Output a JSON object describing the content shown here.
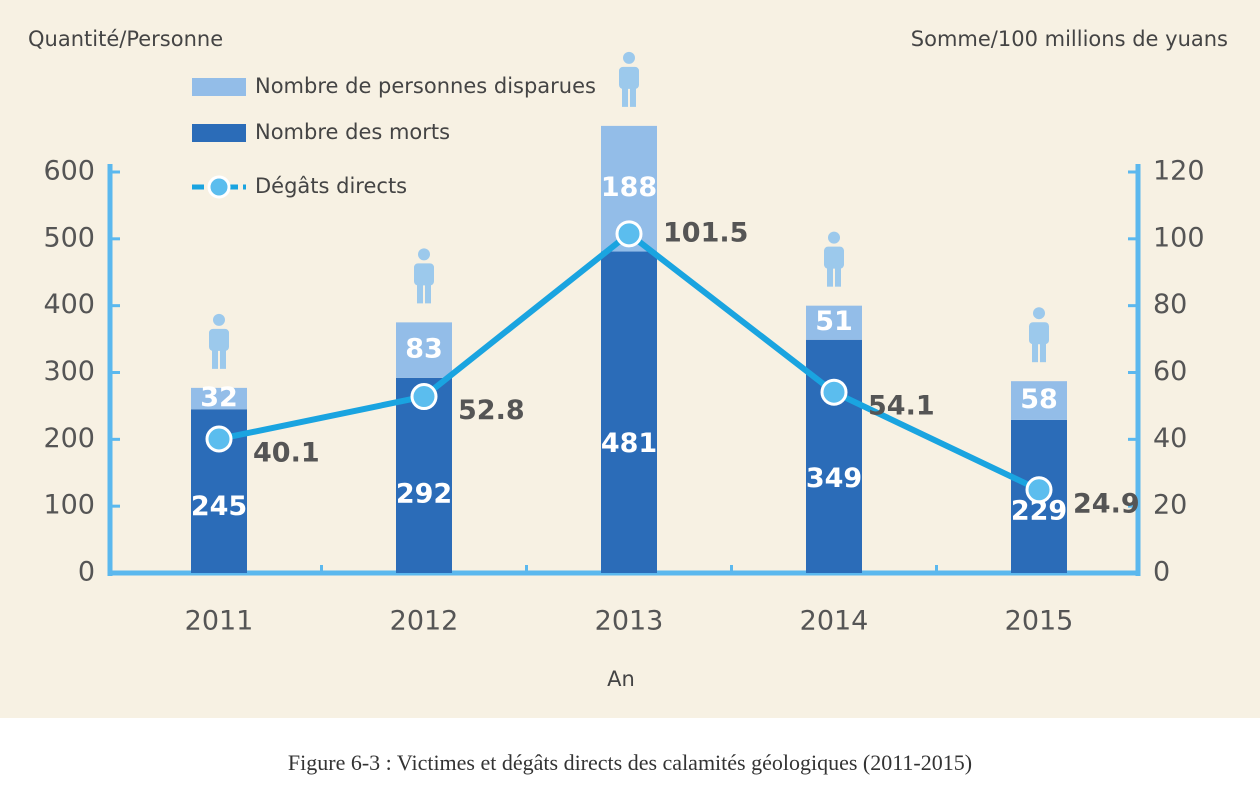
{
  "chart_data": {
    "type": "bar",
    "stacked": true,
    "y_label": "Quantité/Personne",
    "y2_label": "Somme/100 millions de yuans",
    "x_label": "An",
    "caption": "Figure 6-3 : Victimes et dégâts directs des calamités géologiques (2011-2015)",
    "categories": [
      "2011",
      "2012",
      "2013",
      "2014",
      "2015"
    ],
    "series": [
      {
        "name": "Nombre de personnes disparues",
        "color": "#93bde8",
        "values": [
          32,
          83,
          188,
          51,
          58
        ]
      },
      {
        "name": "Nombre des morts",
        "color": "#2b6cb8",
        "values": [
          245,
          292,
          481,
          349,
          229
        ]
      },
      {
        "name": "Dégâts directs",
        "type": "line",
        "axis": "y2",
        "color": "#1aa4e0",
        "values": [
          40.1,
          52.8,
          101.5,
          54.1,
          24.9
        ]
      }
    ],
    "ylim": [
      0,
      600
    ],
    "yticks": [
      0,
      100,
      200,
      300,
      400,
      500,
      600
    ],
    "y2lim": [
      0,
      120
    ],
    "y2ticks": [
      0,
      20,
      40,
      60,
      80,
      100,
      120
    ]
  }
}
